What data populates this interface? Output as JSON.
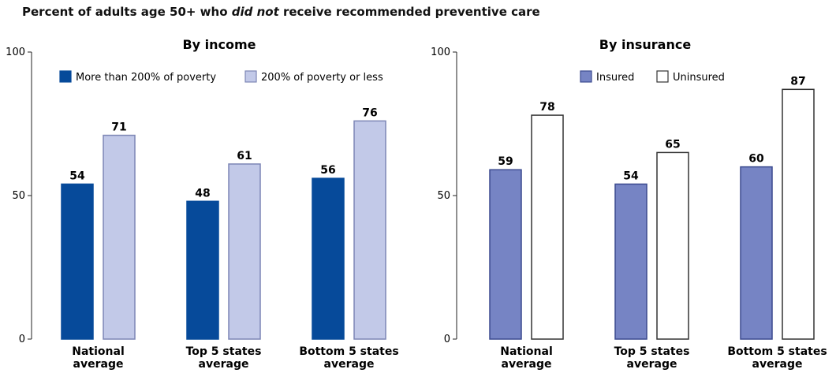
{
  "title": {
    "before": "Percent of adults age 50+ who ",
    "emphasis": "did not",
    "after": " receive recommended preventive care"
  },
  "chart_data": [
    {
      "type": "bar",
      "title": "By income",
      "categories": [
        [
          "National",
          "average"
        ],
        [
          "Top 5 states",
          "average"
        ],
        [
          "Bottom 5 states",
          "average"
        ]
      ],
      "ylim": [
        0,
        100
      ],
      "yticks": [
        0,
        50,
        100
      ],
      "legend_position": "top",
      "series": [
        {
          "name": "More than 200% of poverty",
          "values": [
            54,
            48,
            56
          ],
          "color": "#064a9a",
          "stroke": "#064a9a"
        },
        {
          "name": "200% of poverty or less",
          "values": [
            71,
            61,
            76
          ],
          "color": "#c2c9e8",
          "stroke": "#7d86b5"
        }
      ]
    },
    {
      "type": "bar",
      "title": "By insurance",
      "categories": [
        [
          "National",
          "average"
        ],
        [
          "Top 5 states",
          "average"
        ],
        [
          "Bottom 5 states",
          "average"
        ]
      ],
      "ylim": [
        0,
        100
      ],
      "yticks": [
        0,
        50,
        100
      ],
      "legend_position": "top",
      "series": [
        {
          "name": "Insured",
          "values": [
            59,
            54,
            60
          ],
          "color": "#7684c4",
          "stroke": "#3b4a8f"
        },
        {
          "name": "Uninsured",
          "values": [
            78,
            65,
            87
          ],
          "color": "#ffffff",
          "stroke": "#333333"
        }
      ]
    }
  ]
}
